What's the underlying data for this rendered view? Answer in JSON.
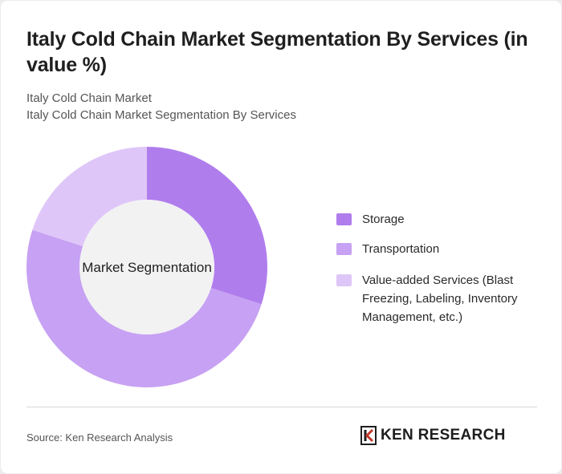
{
  "title": "Italy Cold Chain Market Segmentation By Services (in value %)",
  "subtitle_line1": "Italy Cold Chain Market",
  "subtitle_line2": "Italy Cold Chain Market Segmentation By Services",
  "source": "Source: Ken Research Analysis",
  "logo": {
    "text": "KEN RESEARCH",
    "icon": "ken-research-k-logo"
  },
  "chart_data": {
    "type": "pie",
    "variant": "donut",
    "center_label": "Market Segmentation",
    "categories": [
      "Storage",
      "Transportation",
      "Value-added Services (Blast Freezing, Labeling, Inventory Management, etc.)"
    ],
    "values": [
      30,
      50,
      20
    ],
    "colors": [
      "#b07ded",
      "#c7a1f3",
      "#dfc6f8"
    ],
    "legend_position": "right"
  }
}
